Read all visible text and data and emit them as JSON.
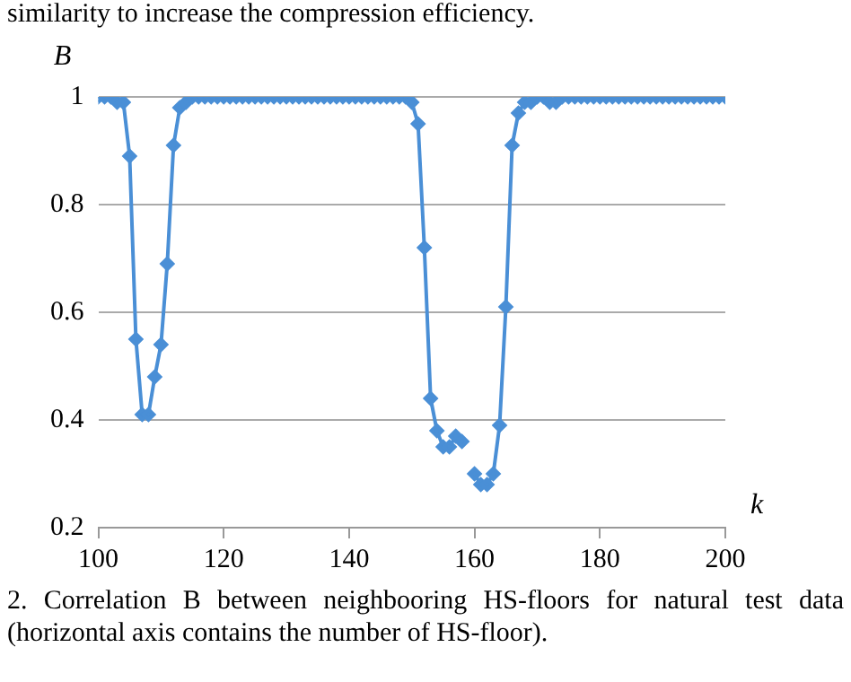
{
  "chart_data": {
    "type": "line",
    "xlabel": "k",
    "ylabel": "B",
    "annotations": [
      "similarity to increase the compression efficiency.",
      "2. Correlation B between neighbooring HS-floors for natural test data (horizontal axis contains the number of HS-floor)."
    ],
    "x": [
      100,
      101,
      102,
      103,
      104,
      105,
      106,
      107,
      108,
      109,
      110,
      111,
      112,
      113,
      114,
      115,
      116,
      117,
      118,
      119,
      120,
      121,
      122,
      123,
      124,
      125,
      126,
      127,
      128,
      129,
      130,
      131,
      132,
      133,
      134,
      135,
      136,
      137,
      138,
      139,
      140,
      141,
      142,
      143,
      144,
      145,
      146,
      147,
      148,
      149,
      150,
      151,
      152,
      153,
      154,
      155,
      156,
      157,
      158,
      159,
      160,
      161,
      162,
      163,
      164,
      165,
      166,
      167,
      168,
      169,
      170,
      171,
      172,
      173,
      174,
      175,
      176,
      177,
      178,
      179,
      180,
      181,
      182,
      183,
      184,
      185,
      186,
      187,
      188,
      189,
      190,
      191,
      192,
      193,
      194,
      195,
      196,
      197,
      198,
      199,
      200
    ],
    "series": [
      {
        "color": "#4a8fd6",
        "values": [
          1,
          1,
          1,
          0.99,
          0.99,
          0.89,
          0.55,
          0.41,
          0.41,
          0.48,
          0.54,
          0.69,
          0.91,
          0.98,
          0.99,
          1,
          1,
          1,
          1,
          1,
          1,
          1,
          1,
          1,
          1,
          1,
          1,
          1,
          1,
          1,
          1,
          1,
          1,
          1,
          1,
          1,
          1,
          1,
          1,
          1,
          1,
          1,
          1,
          1,
          1,
          1,
          1,
          1,
          1,
          1,
          0.99,
          0.95,
          0.72,
          0.44,
          0.38,
          0.35,
          0.35,
          0.37,
          0.36,
          null,
          0.3,
          0.28,
          0.28,
          0.3,
          0.39,
          0.61,
          0.91,
          0.97,
          0.99,
          0.99,
          1,
          1,
          0.99,
          0.99,
          1,
          1,
          1,
          1,
          1,
          1,
          1,
          1,
          1,
          1,
          1,
          1,
          1,
          1,
          1,
          1,
          1,
          1,
          1,
          1,
          1,
          1,
          1,
          1,
          1,
          1,
          1
        ]
      }
    ],
    "xlim": [
      100,
      200
    ],
    "xticks": [
      100,
      120,
      140,
      160,
      180,
      200
    ],
    "ylim": [
      0.2,
      1
    ],
    "yticks": [
      0.2,
      0.4,
      0.6,
      0.8,
      {
        "value": 1,
        "label": "1"
      }
    ],
    "grid": "y",
    "legend": false,
    "marker": "diamond",
    "line_style": "solid"
  }
}
